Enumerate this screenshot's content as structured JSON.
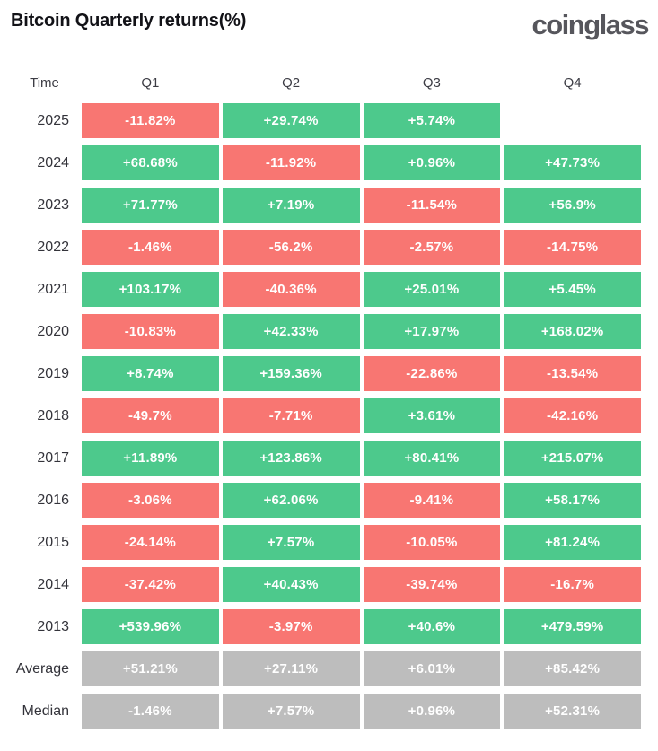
{
  "page": {
    "title": "Bitcoin Quarterly returns(%)",
    "logo_text": "coinglass"
  },
  "colors": {
    "positive": "#4dc98c",
    "negative": "#f87672",
    "neutral": "#bdbdbd",
    "background": "#ffffff",
    "title_text": "#121217",
    "logo_text": "#56565c",
    "label_text": "#33333a",
    "cell_text": "#ffffff"
  },
  "table": {
    "columns": [
      "Time",
      "Q1",
      "Q2",
      "Q3",
      "Q4"
    ],
    "rows": [
      {
        "label": "2025",
        "kind": "year",
        "cells": [
          {
            "value": "-11.82%",
            "state": "negative"
          },
          {
            "value": "+29.74%",
            "state": "positive"
          },
          {
            "value": "+5.74%",
            "state": "positive"
          },
          null
        ]
      },
      {
        "label": "2024",
        "kind": "year",
        "cells": [
          {
            "value": "+68.68%",
            "state": "positive"
          },
          {
            "value": "-11.92%",
            "state": "negative"
          },
          {
            "value": "+0.96%",
            "state": "positive"
          },
          {
            "value": "+47.73%",
            "state": "positive"
          }
        ]
      },
      {
        "label": "2023",
        "kind": "year",
        "cells": [
          {
            "value": "+71.77%",
            "state": "positive"
          },
          {
            "value": "+7.19%",
            "state": "positive"
          },
          {
            "value": "-11.54%",
            "state": "negative"
          },
          {
            "value": "+56.9%",
            "state": "positive"
          }
        ]
      },
      {
        "label": "2022",
        "kind": "year",
        "cells": [
          {
            "value": "-1.46%",
            "state": "negative"
          },
          {
            "value": "-56.2%",
            "state": "negative"
          },
          {
            "value": "-2.57%",
            "state": "negative"
          },
          {
            "value": "-14.75%",
            "state": "negative"
          }
        ]
      },
      {
        "label": "2021",
        "kind": "year",
        "cells": [
          {
            "value": "+103.17%",
            "state": "positive"
          },
          {
            "value": "-40.36%",
            "state": "negative"
          },
          {
            "value": "+25.01%",
            "state": "positive"
          },
          {
            "value": "+5.45%",
            "state": "positive"
          }
        ]
      },
      {
        "label": "2020",
        "kind": "year",
        "cells": [
          {
            "value": "-10.83%",
            "state": "negative"
          },
          {
            "value": "+42.33%",
            "state": "positive"
          },
          {
            "value": "+17.97%",
            "state": "positive"
          },
          {
            "value": "+168.02%",
            "state": "positive"
          }
        ]
      },
      {
        "label": "2019",
        "kind": "year",
        "cells": [
          {
            "value": "+8.74%",
            "state": "positive"
          },
          {
            "value": "+159.36%",
            "state": "positive"
          },
          {
            "value": "-22.86%",
            "state": "negative"
          },
          {
            "value": "-13.54%",
            "state": "negative"
          }
        ]
      },
      {
        "label": "2018",
        "kind": "year",
        "cells": [
          {
            "value": "-49.7%",
            "state": "negative"
          },
          {
            "value": "-7.71%",
            "state": "negative"
          },
          {
            "value": "+3.61%",
            "state": "positive"
          },
          {
            "value": "-42.16%",
            "state": "negative"
          }
        ]
      },
      {
        "label": "2017",
        "kind": "year",
        "cells": [
          {
            "value": "+11.89%",
            "state": "positive"
          },
          {
            "value": "+123.86%",
            "state": "positive"
          },
          {
            "value": "+80.41%",
            "state": "positive"
          },
          {
            "value": "+215.07%",
            "state": "positive"
          }
        ]
      },
      {
        "label": "2016",
        "kind": "year",
        "cells": [
          {
            "value": "-3.06%",
            "state": "negative"
          },
          {
            "value": "+62.06%",
            "state": "positive"
          },
          {
            "value": "-9.41%",
            "state": "negative"
          },
          {
            "value": "+58.17%",
            "state": "positive"
          }
        ]
      },
      {
        "label": "2015",
        "kind": "year",
        "cells": [
          {
            "value": "-24.14%",
            "state": "negative"
          },
          {
            "value": "+7.57%",
            "state": "positive"
          },
          {
            "value": "-10.05%",
            "state": "negative"
          },
          {
            "value": "+81.24%",
            "state": "positive"
          }
        ]
      },
      {
        "label": "2014",
        "kind": "year",
        "cells": [
          {
            "value": "-37.42%",
            "state": "negative"
          },
          {
            "value": "+40.43%",
            "state": "positive"
          },
          {
            "value": "-39.74%",
            "state": "negative"
          },
          {
            "value": "-16.7%",
            "state": "negative"
          }
        ]
      },
      {
        "label": "2013",
        "kind": "year",
        "cells": [
          {
            "value": "+539.96%",
            "state": "positive"
          },
          {
            "value": "-3.97%",
            "state": "negative"
          },
          {
            "value": "+40.6%",
            "state": "positive"
          },
          {
            "value": "+479.59%",
            "state": "positive"
          }
        ]
      },
      {
        "label": "Average",
        "kind": "summary",
        "cells": [
          {
            "value": "+51.21%",
            "state": "neutral"
          },
          {
            "value": "+27.11%",
            "state": "neutral"
          },
          {
            "value": "+6.01%",
            "state": "neutral"
          },
          {
            "value": "+85.42%",
            "state": "neutral"
          }
        ]
      },
      {
        "label": "Median",
        "kind": "summary",
        "cells": [
          {
            "value": "-1.46%",
            "state": "neutral"
          },
          {
            "value": "+7.57%",
            "state": "neutral"
          },
          {
            "value": "+0.96%",
            "state": "neutral"
          },
          {
            "value": "+52.31%",
            "state": "neutral"
          }
        ]
      }
    ]
  },
  "chart_data": {
    "type": "heatmap",
    "title": "Bitcoin Quarterly returns(%)",
    "unit": "%",
    "columns": [
      "Q1",
      "Q2",
      "Q3",
      "Q4"
    ],
    "rows": [
      "2025",
      "2024",
      "2023",
      "2022",
      "2021",
      "2020",
      "2019",
      "2018",
      "2017",
      "2016",
      "2015",
      "2014",
      "2013",
      "Average",
      "Median"
    ],
    "values": [
      [
        -11.82,
        29.74,
        5.74,
        null
      ],
      [
        68.68,
        -11.92,
        0.96,
        47.73
      ],
      [
        71.77,
        7.19,
        -11.54,
        56.9
      ],
      [
        -1.46,
        -56.2,
        -2.57,
        -14.75
      ],
      [
        103.17,
        -40.36,
        25.01,
        5.45
      ],
      [
        -10.83,
        42.33,
        17.97,
        168.02
      ],
      [
        8.74,
        159.36,
        -22.86,
        -13.54
      ],
      [
        -49.7,
        -7.71,
        3.61,
        -42.16
      ],
      [
        11.89,
        123.86,
        80.41,
        215.07
      ],
      [
        -3.06,
        62.06,
        -9.41,
        58.17
      ],
      [
        -24.14,
        7.57,
        -10.05,
        81.24
      ],
      [
        -37.42,
        40.43,
        -39.74,
        -16.7
      ],
      [
        539.96,
        -3.97,
        40.6,
        479.59
      ],
      [
        51.21,
        27.11,
        6.01,
        85.42
      ],
      [
        -1.46,
        7.57,
        0.96,
        52.31
      ]
    ],
    "color_rule": "green if positive, red if negative, gray for Average/Median rows",
    "legend": "none",
    "grid": false
  }
}
